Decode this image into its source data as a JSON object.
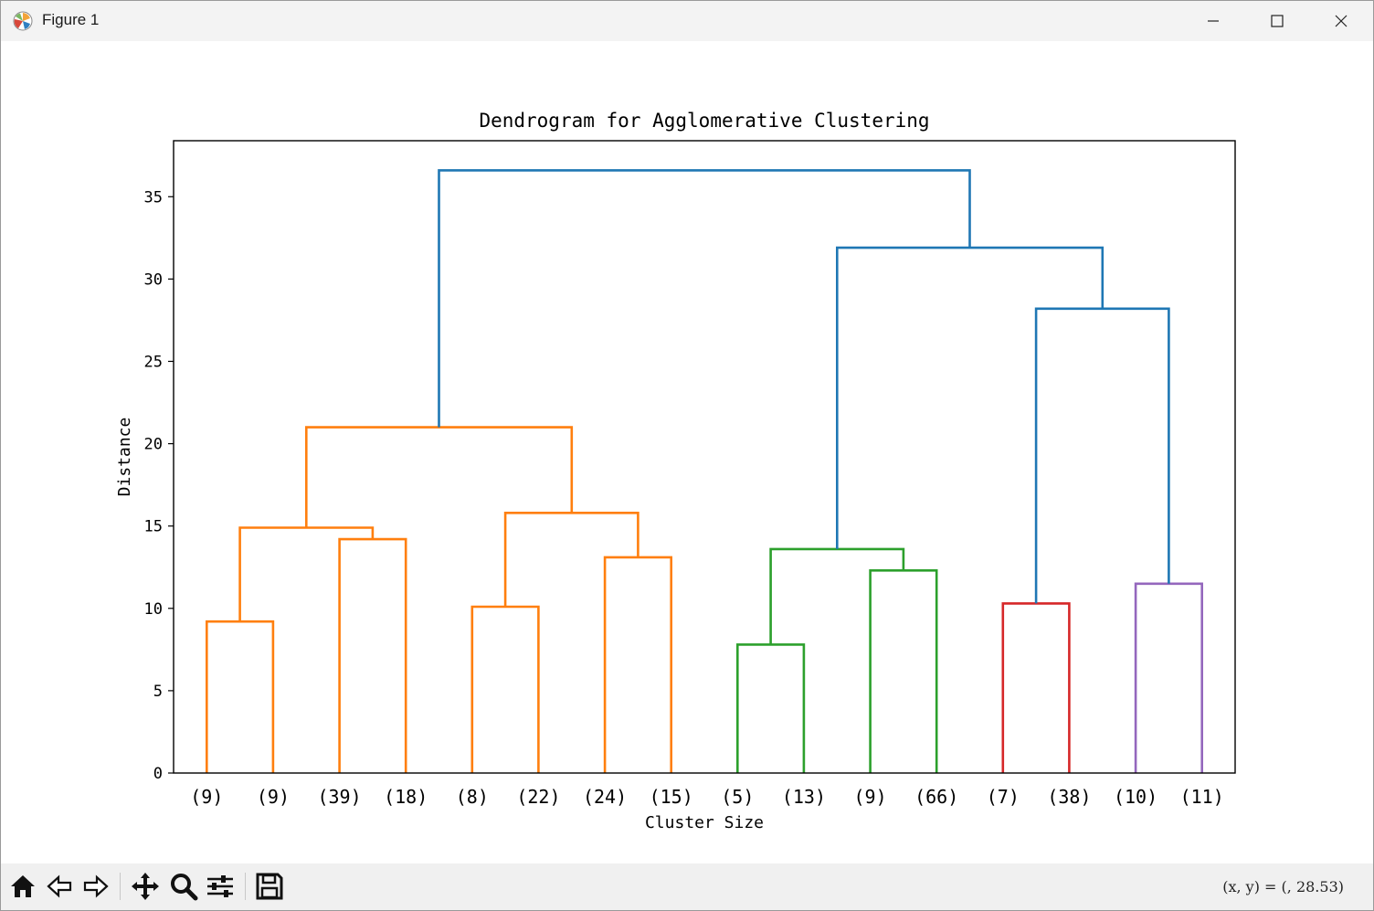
{
  "window": {
    "title": "Figure 1",
    "icon": "matplotlib-icon",
    "controls": [
      "minimize-icon",
      "maximize-icon",
      "close-icon"
    ]
  },
  "toolbar": {
    "buttons": [
      "home-icon",
      "back-icon",
      "forward-icon",
      "pan-icon",
      "zoom-icon",
      "configure-subplots-icon",
      "save-icon"
    ],
    "coordinates": "(x, y) = (, 28.53)"
  },
  "chart_data": {
    "type": "dendrogram",
    "title": "Dendrogram for Agglomerative Clustering",
    "xlabel": "Cluster Size",
    "ylabel": "Distance",
    "ylim": [
      0,
      38.4
    ],
    "yticks": [
      0,
      5,
      10,
      15,
      20,
      25,
      30,
      35
    ],
    "grid": false,
    "leaf_labels": [
      "(9)",
      "(9)",
      "(39)",
      "(18)",
      "(8)",
      "(22)",
      "(24)",
      "(15)",
      "(5)",
      "(13)",
      "(9)",
      "(66)",
      "(7)",
      "(38)",
      "(10)",
      "(11)"
    ],
    "colors": {
      "C0": "#1f77b4",
      "C1": "#ff7f0e",
      "C2": "#2ca02c",
      "C3": "#d62728",
      "C4": "#9467bd"
    },
    "links": [
      {
        "name": "link-1",
        "x": [
          5,
          5,
          15,
          15
        ],
        "y": [
          0,
          9.2,
          9.2,
          0
        ],
        "color": "C1"
      },
      {
        "name": "link-2",
        "x": [
          25,
          25,
          35,
          35
        ],
        "y": [
          0,
          14.2,
          14.2,
          0
        ],
        "color": "C1"
      },
      {
        "name": "link-3",
        "x": [
          10,
          10,
          30,
          30
        ],
        "y": [
          9.2,
          14.9,
          14.9,
          14.2
        ],
        "color": "C1"
      },
      {
        "name": "link-4",
        "x": [
          45,
          45,
          55,
          55
        ],
        "y": [
          0,
          10.1,
          10.1,
          0
        ],
        "color": "C1"
      },
      {
        "name": "link-5",
        "x": [
          65,
          65,
          75,
          75
        ],
        "y": [
          0,
          13.1,
          13.1,
          0
        ],
        "color": "C1"
      },
      {
        "name": "link-6",
        "x": [
          50,
          50,
          70,
          70
        ],
        "y": [
          10.1,
          15.8,
          15.8,
          13.1
        ],
        "color": "C1"
      },
      {
        "name": "link-7",
        "x": [
          20,
          20,
          60,
          60
        ],
        "y": [
          14.9,
          21.0,
          21.0,
          15.8
        ],
        "color": "C1"
      },
      {
        "name": "link-8",
        "x": [
          85,
          85,
          95,
          95
        ],
        "y": [
          0,
          7.8,
          7.8,
          0
        ],
        "color": "C2"
      },
      {
        "name": "link-9",
        "x": [
          105,
          105,
          115,
          115
        ],
        "y": [
          0,
          12.3,
          12.3,
          0
        ],
        "color": "C2"
      },
      {
        "name": "link-10",
        "x": [
          90,
          90,
          110,
          110
        ],
        "y": [
          7.8,
          13.6,
          13.6,
          12.3
        ],
        "color": "C2"
      },
      {
        "name": "link-11",
        "x": [
          125,
          125,
          135,
          135
        ],
        "y": [
          0,
          10.3,
          10.3,
          0
        ],
        "color": "C3"
      },
      {
        "name": "link-12",
        "x": [
          145,
          145,
          155,
          155
        ],
        "y": [
          0,
          11.5,
          11.5,
          0
        ],
        "color": "C4"
      },
      {
        "name": "link-13",
        "x": [
          130,
          130,
          150,
          150
        ],
        "y": [
          10.3,
          28.2,
          28.2,
          11.5
        ],
        "color": "C0"
      },
      {
        "name": "link-14",
        "x": [
          100,
          100,
          140,
          140
        ],
        "y": [
          13.6,
          31.9,
          31.9,
          28.2
        ],
        "color": "C0"
      },
      {
        "name": "link-15",
        "x": [
          40,
          40,
          120,
          120
        ],
        "y": [
          21.0,
          36.6,
          36.6,
          31.9
        ],
        "color": "C0"
      }
    ]
  }
}
